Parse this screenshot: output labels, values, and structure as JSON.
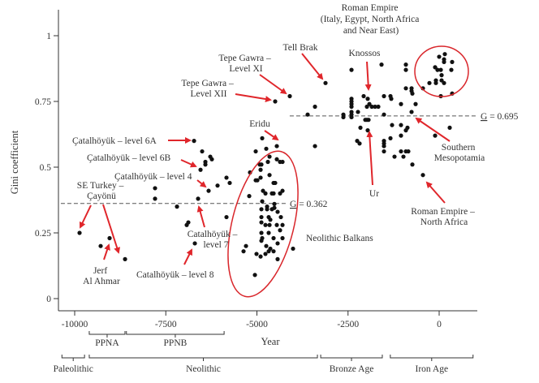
{
  "chart_data": {
    "type": "scatter",
    "title": "",
    "xlabel": "Year",
    "ylabel": "Gini coefficient",
    "xlim": [
      -10380,
      1050
    ],
    "ylim": [
      0,
      1.1
    ],
    "grid": false,
    "x_ticks": [
      -10000,
      -7500,
      -5000,
      -2500,
      0
    ],
    "x_tick_labels": [
      "-10000",
      "-7500",
      "-5000",
      "-2500",
      "0"
    ],
    "y_ticks": [
      0,
      0.25,
      0.5,
      0.75,
      1
    ],
    "y_tick_labels": [
      "0",
      "0.25",
      "0.5",
      "0.75",
      "1"
    ],
    "reference_lines": [
      {
        "value": 0.362,
        "label_prefix": "G",
        "label_suffix": " = 0.362",
        "from_year": -10380,
        "to_year": -4200
      },
      {
        "value": 0.695,
        "label_prefix": "G",
        "label_suffix": " = 0.695",
        "from_year": -4100,
        "to_year": 1050
      }
    ],
    "periods_upper": [
      {
        "label": "PPNA",
        "start": -9600,
        "end": -8620
      },
      {
        "label": "PPNB",
        "start": -8580,
        "end": -5900
      }
    ],
    "periods_lower": [
      {
        "label": "Paleolithic",
        "start": -10350,
        "end": -9730
      },
      {
        "label": "Neolithic",
        "start": -9600,
        "end": -3340
      },
      {
        "label": "Bronze Age",
        "start": -3250,
        "end": -1560
      },
      {
        "label": "Iron Age",
        "start": -1340,
        "end": 930
      }
    ],
    "annotations": [
      {
        "lines": [
          "Roman Empire",
          "(Italy, Egypt, North Africa",
          "and Near East)"
        ]
      },
      {
        "lines": [
          "Tell Brak"
        ]
      },
      {
        "lines": [
          "Tepe Gawra –",
          "Level XI"
        ]
      },
      {
        "lines": [
          "Tepe Gawra –",
          "Level XII"
        ]
      },
      {
        "lines": [
          "Knossos"
        ]
      },
      {
        "lines": [
          "Eridu"
        ]
      },
      {
        "lines": [
          "Çatalhöyük – level 6A"
        ]
      },
      {
        "lines": [
          "Çatalhöyük – level 6B"
        ]
      },
      {
        "lines": [
          "Çatalhöyük – level 4"
        ]
      },
      {
        "lines": [
          "SE Turkey –",
          "Çayönü"
        ]
      },
      {
        "lines": [
          "Catalhöyük –",
          "level 7"
        ]
      },
      {
        "lines": [
          "Jerf",
          "Al Ahmar"
        ]
      },
      {
        "lines": [
          "Catalhöyük – level 8"
        ]
      },
      {
        "lines": [
          "Neolithic Balkans"
        ]
      },
      {
        "lines": [
          "Southern",
          "Mesopotamia"
        ]
      },
      {
        "lines": [
          "Ur"
        ]
      },
      {
        "lines": [
          "Roman Empire –",
          "North Africa"
        ]
      }
    ],
    "colors": {
      "points": "#111111",
      "annotation": "#e0262b"
    },
    "points": [
      [
        -6725,
        0.6
      ],
      [
        -6503,
        0.56
      ],
      [
        -6280,
        0.54
      ],
      [
        -6236,
        0.53
      ],
      [
        -6414,
        0.52
      ],
      [
        -6414,
        0.51
      ],
      [
        -6547,
        0.49
      ],
      [
        -5835,
        0.46
      ],
      [
        -5746,
        0.44
      ],
      [
        -6080,
        0.43
      ],
      [
        -6325,
        0.41
      ],
      [
        -7795,
        0.42
      ],
      [
        -7795,
        0.38
      ],
      [
        -6614,
        0.38
      ],
      [
        -7193,
        0.35
      ],
      [
        -5835,
        0.31
      ],
      [
        -6882,
        0.29
      ],
      [
        -6926,
        0.28
      ],
      [
        -9866,
        0.25
      ],
      [
        -9042,
        0.23
      ],
      [
        -9287,
        0.2
      ],
      [
        -6703,
        0.21
      ],
      [
        -8618,
        0.15
      ],
      [
        -4855,
        0.61
      ],
      [
        -4454,
        0.58
      ],
      [
        -4744,
        0.57
      ],
      [
        -3407,
        0.58
      ],
      [
        -5033,
        0.56
      ],
      [
        -4654,
        0.54
      ],
      [
        -4454,
        0.53
      ],
      [
        -4298,
        0.52
      ],
      [
        -4365,
        0.52
      ],
      [
        -4877,
        0.51
      ],
      [
        -4922,
        0.51
      ],
      [
        -4699,
        0.52
      ],
      [
        -4899,
        0.49
      ],
      [
        -5189,
        0.48
      ],
      [
        -4654,
        0.47
      ],
      [
        -5033,
        0.45
      ],
      [
        -4899,
        0.46
      ],
      [
        -4988,
        0.45
      ],
      [
        -4543,
        0.44
      ],
      [
        -4499,
        0.44
      ],
      [
        -4833,
        0.41
      ],
      [
        -4543,
        0.4
      ],
      [
        -4298,
        0.41
      ],
      [
        -4766,
        0.4
      ],
      [
        -4588,
        0.4
      ],
      [
        -4365,
        0.4
      ],
      [
        -5211,
        0.39
      ],
      [
        -4855,
        0.37
      ],
      [
        -4521,
        0.36
      ],
      [
        -4721,
        0.35
      ],
      [
        -4877,
        0.34
      ],
      [
        -4721,
        0.34
      ],
      [
        -4588,
        0.34
      ],
      [
        -4432,
        0.33
      ],
      [
        -4521,
        0.345
      ],
      [
        -4877,
        0.31
      ],
      [
        -4677,
        0.31
      ],
      [
        -4343,
        0.31
      ],
      [
        -4877,
        0.29
      ],
      [
        -4632,
        0.3
      ],
      [
        -4454,
        0.28
      ],
      [
        -4298,
        0.28
      ],
      [
        -4654,
        0.28
      ],
      [
        -4766,
        0.28
      ],
      [
        -4365,
        0.26
      ],
      [
        -4677,
        0.25
      ],
      [
        -4877,
        0.25
      ],
      [
        -4855,
        0.23
      ],
      [
        -4543,
        0.23
      ],
      [
        -4298,
        0.23
      ],
      [
        -4877,
        0.22
      ],
      [
        -4432,
        0.21
      ],
      [
        -4744,
        0.2
      ],
      [
        -4632,
        0.19
      ],
      [
        -5300,
        0.2
      ],
      [
        -4009,
        0.19
      ],
      [
        -5367,
        0.18
      ],
      [
        -4543,
        0.18
      ],
      [
        -4677,
        0.18
      ],
      [
        -4766,
        0.17
      ],
      [
        -5011,
        0.17
      ],
      [
        -4899,
        0.16
      ],
      [
        -4432,
        0.15
      ],
      [
        -5055,
        0.09
      ],
      [
        -3118,
        0.82
      ],
      [
        -4098,
        0.77
      ],
      [
        -4499,
        0.75
      ],
      [
        -3407,
        0.73
      ],
      [
        -3608,
        0.7
      ],
      [
        -2405,
        0.87
      ],
      [
        -1581,
        0.89
      ],
      [
        -913,
        0.89
      ],
      [
        -913,
        0.87
      ],
      [
        156,
        0.93
      ],
      [
        0,
        0.92
      ],
      [
        134,
        0.91
      ],
      [
        134,
        0.9
      ],
      [
        356,
        0.9
      ],
      [
        334,
        0.87
      ],
      [
        -111,
        0.88
      ],
      [
        -45,
        0.87
      ],
      [
        45,
        0.87
      ],
      [
        67,
        0.85
      ],
      [
        -89,
        0.83
      ],
      [
        -89,
        0.82
      ],
      [
        67,
        0.83
      ],
      [
        134,
        0.82
      ],
      [
        -267,
        0.82
      ],
      [
        -445,
        0.8
      ],
      [
        45,
        0.77
      ],
      [
        356,
        0.78
      ],
      [
        -913,
        0.8
      ],
      [
        -757,
        0.8
      ],
      [
        -757,
        0.79
      ],
      [
        -735,
        0.78
      ],
      [
        -2071,
        0.77
      ],
      [
        -1960,
        0.76
      ],
      [
        -1514,
        0.77
      ],
      [
        -1336,
        0.77
      ],
      [
        -1314,
        0.76
      ],
      [
        -2405,
        0.76
      ],
      [
        -2405,
        0.75
      ],
      [
        -2405,
        0.74
      ],
      [
        -2405,
        0.73
      ],
      [
        -2405,
        0.71
      ],
      [
        -2405,
        0.7
      ],
      [
        -2405,
        0.69
      ],
      [
        -2628,
        0.7
      ],
      [
        -2628,
        0.69
      ],
      [
        -2227,
        0.71
      ],
      [
        -1982,
        0.73
      ],
      [
        -1915,
        0.74
      ],
      [
        -1848,
        0.73
      ],
      [
        -1759,
        0.73
      ],
      [
        -1670,
        0.73
      ],
      [
        -1047,
        0.74
      ],
      [
        -646,
        0.74
      ],
      [
        -1514,
        0.7
      ],
      [
        -757,
        0.71
      ],
      [
        -1982,
        0.68
      ],
      [
        -2027,
        0.68
      ],
      [
        -1937,
        0.68
      ],
      [
        -1292,
        0.66
      ],
      [
        -1047,
        0.66
      ],
      [
        -869,
        0.65
      ],
      [
        -2160,
        0.65
      ],
      [
        -1960,
        0.64
      ],
      [
        -1047,
        0.62
      ],
      [
        -913,
        0.64
      ],
      [
        -1336,
        0.61
      ],
      [
        290,
        0.65
      ],
      [
        -111,
        0.62
      ],
      [
        -2249,
        0.6
      ],
      [
        -2183,
        0.59
      ],
      [
        -1514,
        0.6
      ],
      [
        -1514,
        0.59
      ],
      [
        -1514,
        0.58
      ],
      [
        -1514,
        0.56
      ],
      [
        -1047,
        0.56
      ],
      [
        -980,
        0.54
      ],
      [
        -913,
        0.56
      ],
      [
        -846,
        0.56
      ],
      [
        -1225,
        0.54
      ],
      [
        -735,
        0.51
      ],
      [
        -445,
        0.47
      ]
    ]
  }
}
